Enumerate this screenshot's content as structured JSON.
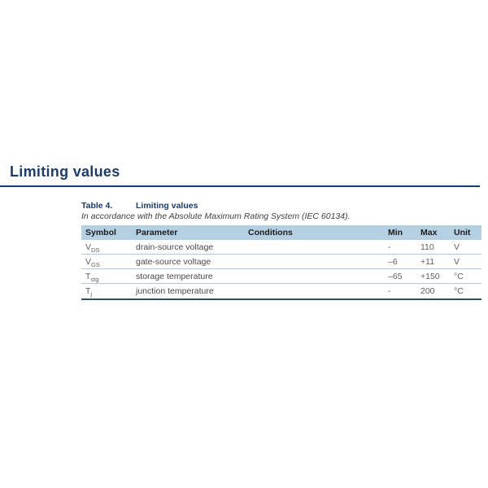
{
  "page": {
    "heading": "Limiting values"
  },
  "caption": {
    "label": "Table 4.",
    "title": "Limiting values",
    "note": "In accordance with the Absolute Maximum Rating System (IEC 60134)."
  },
  "table": {
    "headers": [
      "Symbol",
      "Parameter",
      "Conditions",
      "Min",
      "Max",
      "Unit"
    ],
    "rows": [
      {
        "symbol_base": "V",
        "symbol_sub": "DS",
        "parameter": "drain-source voltage",
        "conditions": "",
        "min": "-",
        "max": "110",
        "unit": "V"
      },
      {
        "symbol_base": "V",
        "symbol_sub": "GS",
        "parameter": "gate-source voltage",
        "conditions": "",
        "min": "–6",
        "max": "+11",
        "unit": "V"
      },
      {
        "symbol_base": "T",
        "symbol_sub": "stg",
        "parameter": "storage temperature",
        "conditions": "",
        "min": "–65",
        "max": "+150",
        "unit": "°C"
      },
      {
        "symbol_base": "T",
        "symbol_sub": "j",
        "parameter": "junction temperature",
        "conditions": "",
        "min": "-",
        "max": "200",
        "unit": "°C"
      }
    ]
  },
  "colors": {
    "heading_blue": "#1B3C6E",
    "table_header_bg": "#B5CFE3",
    "row_divider": "#AFC8DB",
    "table_bottom_border": "#2E5066",
    "body_text": "#4a4a4a"
  }
}
